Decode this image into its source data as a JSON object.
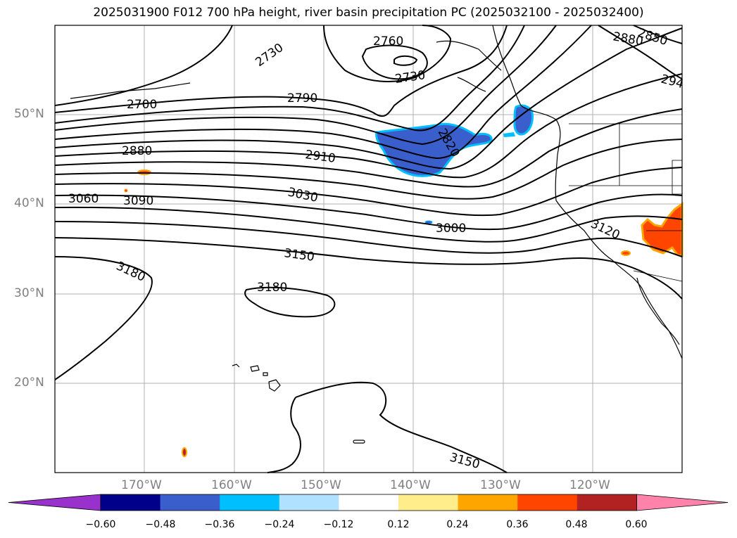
{
  "title": "2025031900 F012 700 hPa height, river basin precipitation PC (2025032100 - 2025032400)",
  "lat_labels": [
    "50°N",
    "40°N",
    "30°N",
    "20°N"
  ],
  "lon_labels": [
    "170°W",
    "160°W",
    "150°W",
    "140°W",
    "130°W",
    "120°W"
  ],
  "contour_labels": [
    "2730",
    "2760",
    "2730",
    "2790",
    "2700",
    "2880",
    "2910",
    "3060",
    "3090",
    "3030",
    "3000",
    "3150",
    "3180",
    "3180",
    "3120",
    "2880",
    "2850",
    "294",
    "2820",
    "3150"
  ],
  "colorbar": {
    "colors": [
      "#9932cc",
      "#00008b",
      "#3a5fcd",
      "#00bfff",
      "#b0e2ff",
      "#ffffff",
      "#ffec8b",
      "#ffa500",
      "#ff4500",
      "#b22222",
      "#ff82ab"
    ],
    "ticks": [
      "−0.60",
      "−0.48",
      "−0.36",
      "−0.24",
      "−0.12",
      "0.12",
      "0.24",
      "0.36",
      "0.48",
      "0.60"
    ]
  }
}
